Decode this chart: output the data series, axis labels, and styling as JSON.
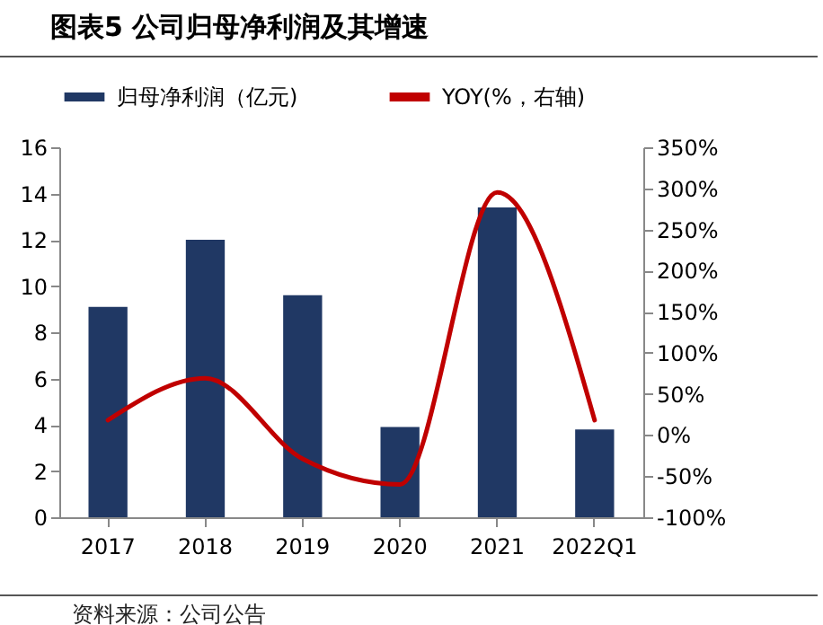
{
  "chart_data": {
    "type": "bar",
    "title": "图表5 公司归母净利润及其增速",
    "annotations": [
      "资料来源：公司公告"
    ],
    "categories": [
      "2017",
      "2018",
      "2019",
      "2020",
      "2021",
      "2022Q1"
    ],
    "series": [
      {
        "name": "归母净利润（亿元)",
        "color": "#203864",
        "values": [
          9.1,
          12.0,
          9.6,
          3.9,
          13.4,
          3.8
        ]
      },
      {
        "name": "YOY(%，右轴)",
        "type": "line",
        "axis": "y2",
        "color": "#c00000",
        "values": [
          18,
          69,
          -29,
          -60,
          295,
          18
        ]
      }
    ],
    "ylim": [
      0,
      16
    ],
    "yticks": [
      0,
      2,
      4,
      6,
      8,
      10,
      12,
      14,
      16
    ],
    "y2lim": [
      -100,
      350
    ],
    "y2ticks": [
      {
        "value": -100,
        "label": "-100%"
      },
      {
        "value": -50,
        "label": "-50%"
      },
      {
        "value": 0,
        "label": "0%"
      },
      {
        "value": 50,
        "label": "50%"
      },
      {
        "value": 100,
        "label": "100%"
      },
      {
        "value": 150,
        "label": "150%"
      },
      {
        "value": 200,
        "label": "200%"
      },
      {
        "value": 250,
        "label": "250%"
      },
      {
        "value": 300,
        "label": "300%"
      },
      {
        "value": 350,
        "label": "350%"
      }
    ],
    "legend": "top",
    "grid": false
  }
}
